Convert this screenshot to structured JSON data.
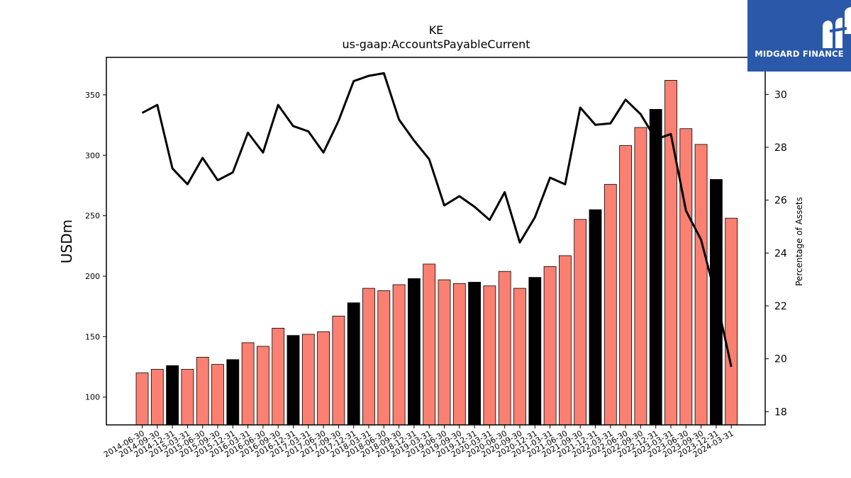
{
  "logo": {
    "text": "MIDGARD FINANCE"
  },
  "chart_data": {
    "type": "bar",
    "title": "KE",
    "subtitle": "us-gaap:AccountsPayableCurrent",
    "ylabel": "USDm",
    "y2label": "Percentage of Assets",
    "ylim": [
      77,
      381
    ],
    "y2lim": [
      17.5,
      31.4
    ],
    "yticks": [
      100,
      150,
      200,
      250,
      300,
      350
    ],
    "y2ticks": [
      18,
      20,
      22,
      24,
      26,
      28,
      30
    ],
    "colors": {
      "bar": "#fa8072",
      "highlight": "#000000",
      "line": "#000000"
    },
    "categories": [
      "2014-06-30",
      "2014-09-30",
      "2014-12-31",
      "2015-03-31",
      "2015-06-30",
      "2015-09-30",
      "2015-12-31",
      "2016-03-31",
      "2016-06-30",
      "2016-09-30",
      "2016-12-31",
      "2017-03-31",
      "2017-06-30",
      "2017-09-30",
      "2017-12-31",
      "2018-03-31",
      "2018-06-30",
      "2018-09-30",
      "2018-12-31",
      "2019-03-31",
      "2019-06-30",
      "2019-09-30",
      "2019-12-31",
      "2020-03-31",
      "2020-06-30",
      "2020-09-30",
      "2020-12-31",
      "2021-03-31",
      "2021-06-30",
      "2021-09-30",
      "2021-12-31",
      "2022-03-31",
      "2022-06-30",
      "2022-09-30",
      "2022-12-31",
      "2023-03-31",
      "2023-06-30",
      "2023-09-30",
      "2023-12-31",
      "2024-03-31"
    ],
    "series": [
      {
        "kind": "bar",
        "values": [
          120,
          123,
          126,
          123,
          133,
          127,
          131,
          145,
          142,
          157,
          151,
          152,
          154,
          167,
          178,
          190,
          188,
          193,
          198,
          210,
          197,
          194,
          195,
          192,
          204,
          190,
          199,
          208,
          217,
          247,
          255,
          276,
          308,
          323,
          338,
          362,
          322,
          309,
          280,
          248
        ],
        "highlight": [
          false,
          false,
          true,
          false,
          false,
          false,
          true,
          false,
          false,
          false,
          true,
          false,
          false,
          false,
          true,
          false,
          false,
          false,
          true,
          false,
          false,
          false,
          true,
          false,
          false,
          false,
          true,
          false,
          false,
          false,
          true,
          false,
          false,
          false,
          true,
          false,
          false,
          false,
          true,
          false
        ]
      },
      {
        "kind": "line",
        "values": [
          29.3,
          29.6,
          27.2,
          26.6,
          27.6,
          26.75,
          27.05,
          28.55,
          27.8,
          29.6,
          28.8,
          28.6,
          27.8,
          29.0,
          30.5,
          30.7,
          30.8,
          29.05,
          28.25,
          27.55,
          25.8,
          26.15,
          25.75,
          25.25,
          26.3,
          24.4,
          25.35,
          26.85,
          26.6,
          29.5,
          28.85,
          28.9,
          29.8,
          29.25,
          28.3,
          28.5,
          25.6,
          24.5,
          22.3,
          19.7
        ]
      }
    ]
  }
}
